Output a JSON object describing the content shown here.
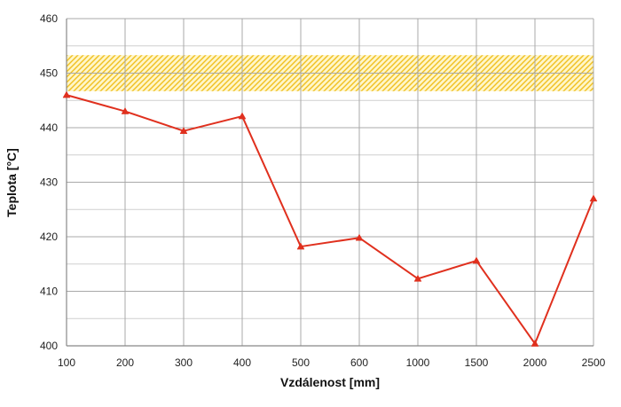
{
  "chart_data": {
    "type": "line",
    "xlabel": "Vzdálenost  [mm]",
    "ylabel": "Teplota [°C]",
    "categories": [
      "100",
      "200",
      "300",
      "400",
      "500",
      "600",
      "1000",
      "1500",
      "2000",
      "2500"
    ],
    "series": [
      {
        "values": [
          446,
          443,
          439.4,
          442.1,
          418.2,
          419.8,
          412.3,
          415.6,
          400.4,
          427
        ]
      }
    ],
    "ylim": [
      400,
      460
    ],
    "yticks": [
      400,
      410,
      420,
      430,
      440,
      450,
      460
    ],
    "band": {
      "from": 446.7,
      "to": 453.3,
      "color": "#f5c518",
      "pattern": "diagonal-hatch"
    },
    "line_color": "#e0301e",
    "marker": "triangle",
    "grid": true,
    "legend": "none"
  }
}
